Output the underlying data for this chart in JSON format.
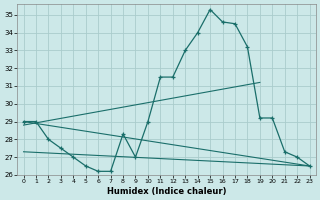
{
  "xlabel": "Humidex (Indice chaleur)",
  "bg_color": "#cce8e8",
  "grid_color": "#aacccc",
  "line_color": "#1a6e6a",
  "xlim": [
    -0.5,
    23.5
  ],
  "ylim": [
    26,
    35.6
  ],
  "yticks": [
    26,
    27,
    28,
    29,
    30,
    31,
    32,
    33,
    34,
    35
  ],
  "xticks": [
    0,
    1,
    2,
    3,
    4,
    5,
    6,
    7,
    8,
    9,
    10,
    11,
    12,
    13,
    14,
    15,
    16,
    17,
    18,
    19,
    20,
    21,
    22,
    23
  ],
  "series1_x": [
    0,
    1,
    2,
    3,
    4,
    5,
    6,
    7,
    8,
    9,
    10,
    11,
    12,
    13,
    14,
    15,
    16,
    17,
    18,
    19,
    20,
    21,
    22,
    23
  ],
  "series1_y": [
    29.0,
    29.0,
    28.0,
    27.5,
    27.0,
    26.5,
    26.2,
    26.2,
    28.3,
    27.0,
    29.0,
    31.5,
    31.5,
    33.0,
    34.0,
    35.3,
    34.6,
    34.5,
    33.2,
    29.2,
    29.2,
    27.3,
    27.0,
    26.5
  ],
  "trend1_x": [
    0,
    23
  ],
  "trend1_y": [
    29.0,
    26.5
  ],
  "trend2_x": [
    0,
    19
  ],
  "trend2_y": [
    28.8,
    31.2
  ],
  "trend3_x": [
    0,
    23
  ],
  "trend3_y": [
    27.3,
    26.5
  ]
}
